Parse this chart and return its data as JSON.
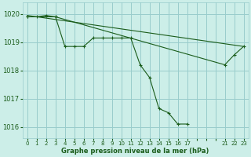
{
  "bg_color": "#cceee8",
  "grid_color": "#99cccc",
  "line_color": "#1a5c1a",
  "marker_color": "#1a5c1a",
  "xlabel": "Graphe pression niveau de la mer (hPa)",
  "xlabel_color": "#1a5c1a",
  "tick_color": "#1a5c1a",
  "ylim": [
    1015.6,
    1020.4
  ],
  "yticks": [
    1016,
    1017,
    1018,
    1019,
    1020
  ],
  "xtick_labels": [
    "0",
    "1",
    "2",
    "3",
    "4",
    "5",
    "6",
    "7",
    "8",
    "9",
    "10",
    "11",
    "12",
    "13",
    "14",
    "15",
    "16",
    "17",
    "",
    "",
    "",
    "21",
    "22",
    "23"
  ],
  "xlim": [
    -0.5,
    23.5
  ],
  "series": [
    {
      "x": [
        0,
        1,
        2,
        3,
        4,
        5,
        6,
        7,
        8,
        9,
        10,
        11,
        12,
        13,
        14,
        15,
        16,
        17
      ],
      "y": [
        1019.9,
        1019.9,
        1019.95,
        1019.9,
        1018.85,
        1018.85,
        1018.85,
        1019.15,
        1019.15,
        1019.15,
        1019.15,
        1019.15,
        1018.2,
        1017.75,
        1016.65,
        1016.5,
        1016.1,
        1016.1
      ],
      "has_markers": true
    },
    {
      "x": [
        0,
        3,
        21,
        22,
        23
      ],
      "y": [
        1019.9,
        1019.9,
        1018.2,
        1018.55,
        1018.85
      ],
      "has_markers": true
    },
    {
      "x": [
        0,
        23
      ],
      "y": [
        1019.95,
        1018.85
      ],
      "has_markers": false
    }
  ]
}
